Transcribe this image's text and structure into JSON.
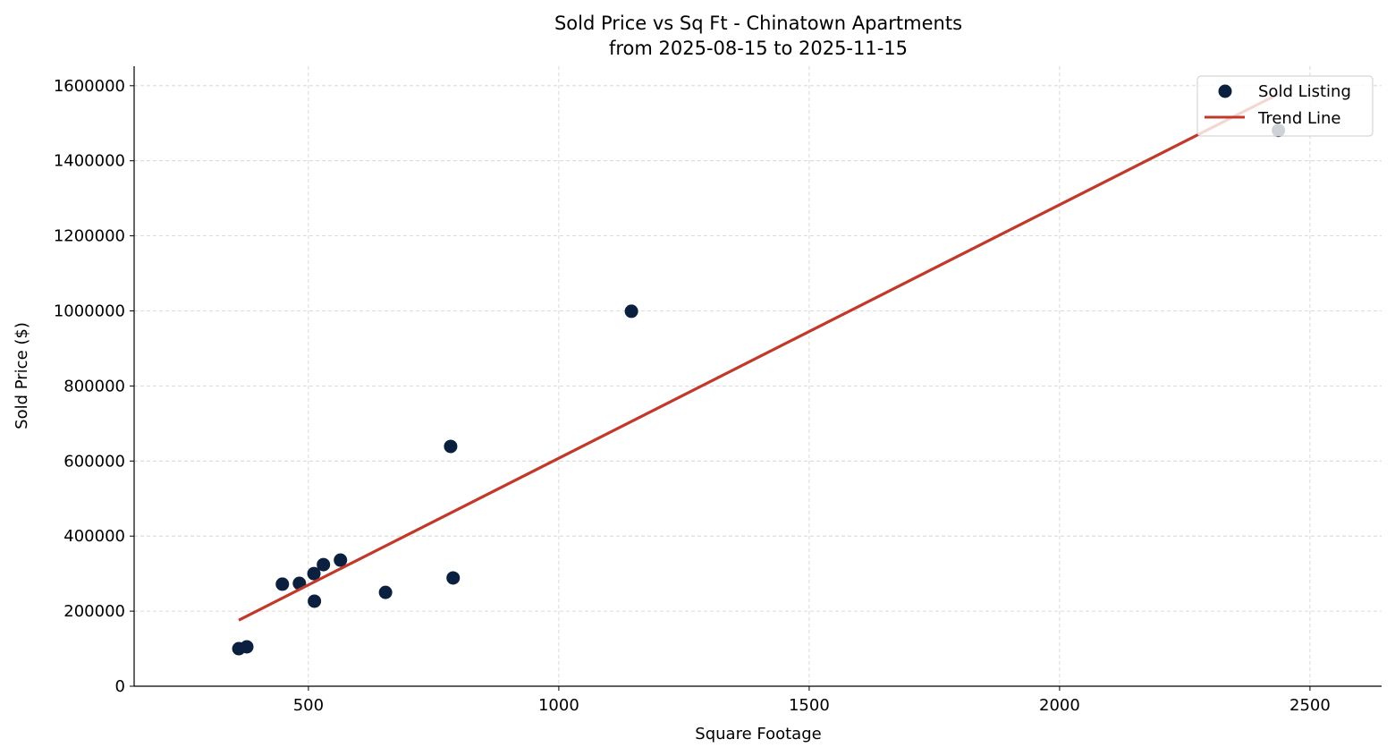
{
  "chart_data": {
    "type": "scatter",
    "title": "Sold Price vs Sq Ft - Chinatown Apartments",
    "subtitle": "from 2025-08-15 to 2025-11-15",
    "xlabel": "Square Footage",
    "ylabel": "Sold Price ($)",
    "xlim": [
      152,
      2643
    ],
    "ylim": [
      0,
      1652000
    ],
    "xticks": [
      500,
      1000,
      1500,
      2000,
      2500
    ],
    "yticks": [
      0,
      200000,
      400000,
      600000,
      800000,
      1000000,
      1200000,
      1400000,
      1600000
    ],
    "grid": true,
    "legend_position": "top-right",
    "series": [
      {
        "name": "Sold Listing",
        "type": "scatter",
        "color": "#0b1f3f",
        "points": [
          [
            361,
            100000
          ],
          [
            377,
            105000
          ],
          [
            448,
            272000
          ],
          [
            482,
            274000
          ],
          [
            511,
            300000
          ],
          [
            512,
            226500
          ],
          [
            530,
            324000
          ],
          [
            564,
            336000
          ],
          [
            654,
            250000
          ],
          [
            784,
            639000
          ],
          [
            789,
            288500
          ],
          [
            1145,
            999000
          ],
          [
            2437,
            1481000
          ]
        ]
      },
      {
        "name": "Trend Line",
        "type": "line",
        "color": "#c0392b",
        "points": [
          [
            361,
            176000
          ],
          [
            2437,
            1578000
          ]
        ]
      }
    ]
  }
}
